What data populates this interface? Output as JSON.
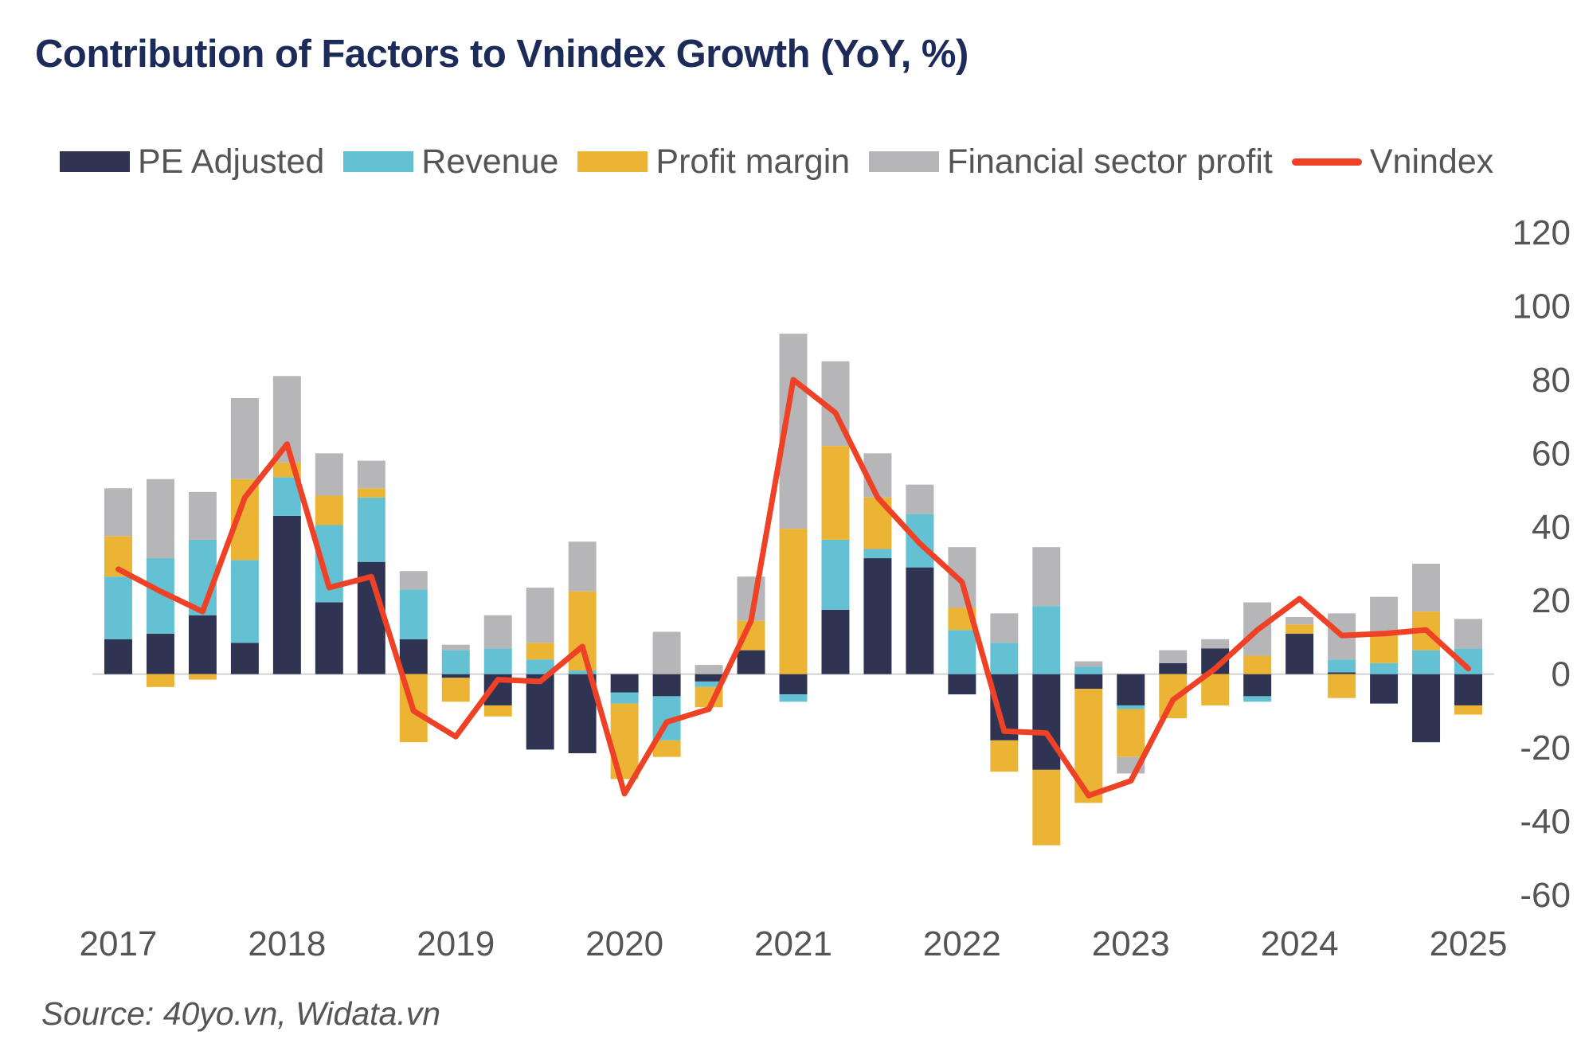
{
  "title": "Contribution of Factors to Vnindex Growth (YoY, %)",
  "source": "Source: 40yo.vn, Widata.vn",
  "legend": [
    {
      "label": "PE Adjusted",
      "color": "#2f3452",
      "kind": "bar"
    },
    {
      "label": "Revenue",
      "color": "#63c1d3",
      "kind": "bar"
    },
    {
      "label": "Profit margin",
      "color": "#ebb434",
      "kind": "bar"
    },
    {
      "label": "Financial sector profit",
      "color": "#b6b6b8",
      "kind": "bar"
    },
    {
      "label": "Vnindex",
      "color": "#ee4126",
      "kind": "line"
    }
  ],
  "chart_data": {
    "type": "bar",
    "stacked": true,
    "title": "Contribution of Factors to Vnindex Growth (YoY, %)",
    "ylim": [
      -60,
      120
    ],
    "yticks": [
      120,
      100,
      80,
      60,
      40,
      20,
      0,
      -20,
      -40,
      -60
    ],
    "y_axis_position": "right",
    "grid": false,
    "legend_position": "top",
    "x_tick_labels": [
      "2017",
      "2018",
      "2019",
      "2020",
      "2021",
      "2022",
      "2023",
      "2024",
      "2025"
    ],
    "x_tick_label_every_n_bars": 4,
    "n_bars": 33,
    "series": [
      {
        "name": "PE Adjusted",
        "color": "#2f3452",
        "values": [
          9.5,
          11,
          16,
          8.5,
          43,
          19.5,
          30.5,
          9.5,
          -1,
          -8.5,
          -20.5,
          -21.5,
          -5,
          -6,
          -2,
          6.5,
          -5.5,
          17.5,
          31.5,
          29,
          -5.5,
          -18,
          -26,
          -4,
          -8.5,
          3,
          7,
          -6,
          11,
          0.5,
          -8,
          -18.5,
          -8.5
        ]
      },
      {
        "name": "Revenue",
        "color": "#63c1d3",
        "values": [
          17,
          20.5,
          20.5,
          22.5,
          10.5,
          21,
          17.5,
          13.5,
          6.5,
          7,
          4,
          1,
          -3,
          -12,
          -1.5,
          0,
          -2,
          19,
          2.5,
          14.5,
          12,
          8.5,
          18.5,
          2,
          -1,
          0,
          0,
          -1.5,
          0,
          3.5,
          3,
          6.5,
          7
        ]
      },
      {
        "name": "Profit margin",
        "color": "#ebb434",
        "values": [
          11,
          -3.5,
          -1.5,
          22,
          4,
          8,
          2.5,
          -18.5,
          -6.5,
          -3,
          4.5,
          21.5,
          -20.5,
          -4.5,
          -5.5,
          8,
          39.5,
          25.5,
          14,
          0,
          6,
          -8.5,
          -20.5,
          -31,
          -13,
          -12,
          -8.5,
          5,
          2.5,
          -6.5,
          7.5,
          10.5,
          -2.5
        ]
      },
      {
        "name": "Financial sector profit",
        "color": "#b6b6b8",
        "values": [
          13,
          21.5,
          13,
          22,
          23.5,
          11.5,
          7.5,
          5,
          1.5,
          9,
          15,
          13.5,
          0,
          11.5,
          2.5,
          12,
          53,
          23,
          12,
          8,
          16.5,
          8,
          16,
          1.5,
          -4.5,
          3.5,
          2.5,
          14.5,
          2,
          12.5,
          10.5,
          13,
          8
        ]
      }
    ],
    "line": {
      "name": "Vnindex",
      "color": "#ee4126",
      "values": [
        28.5,
        22.5,
        17,
        48,
        62.5,
        23.5,
        26.5,
        -10,
        -17,
        -1.5,
        -2,
        7.5,
        -32.5,
        -13,
        -9.5,
        14.5,
        80,
        71,
        48,
        35.5,
        25,
        -15.5,
        -16,
        -33,
        -29,
        -7,
        1.5,
        12,
        20.5,
        10.5,
        11,
        12,
        1.5
      ]
    }
  }
}
